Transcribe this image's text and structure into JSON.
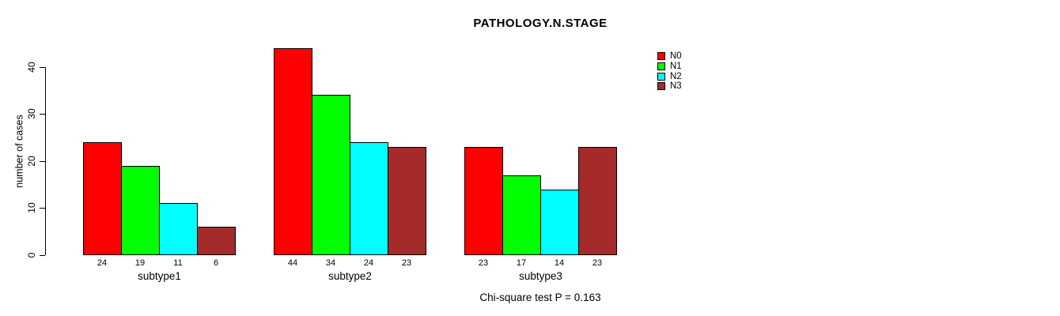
{
  "chart_data": {
    "type": "bar",
    "title": "PATHOLOGY.N.STAGE",
    "ylabel": "number of cases",
    "xlabel": "",
    "categories": [
      "subtype1",
      "subtype2",
      "subtype3"
    ],
    "series": [
      {
        "name": "N0",
        "color": "#ff0000",
        "values": [
          24,
          44,
          23
        ]
      },
      {
        "name": "N1",
        "color": "#00ff00",
        "values": [
          19,
          34,
          17
        ]
      },
      {
        "name": "N2",
        "color": "#00ffff",
        "values": [
          11,
          24,
          14
        ]
      },
      {
        "name": "N3",
        "color": "#a52a2a",
        "values": [
          6,
          23,
          23
        ]
      }
    ],
    "bar_value_labels": [
      [
        24,
        19,
        11,
        6
      ],
      [
        44,
        34,
        24,
        23
      ],
      [
        23,
        17,
        14,
        23
      ]
    ],
    "yticks": [
      0,
      10,
      20,
      30,
      40
    ],
    "ylim": [
      0,
      40
    ],
    "grid": false,
    "legend_position": "right",
    "legend": [
      {
        "label": "N0",
        "color": "#ff0000"
      },
      {
        "label": "N1",
        "color": "#00ff00"
      },
      {
        "label": "N2",
        "color": "#00ffff"
      },
      {
        "label": "N3",
        "color": "#a52a2a"
      }
    ],
    "annotation": "Chi-square test P = 0.163"
  }
}
